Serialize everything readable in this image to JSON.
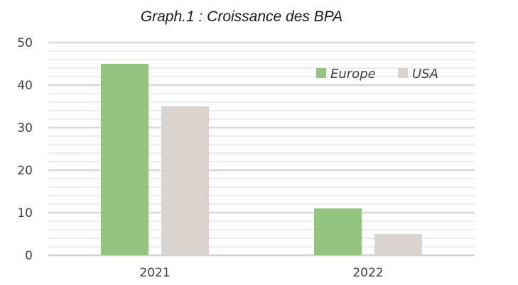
{
  "chart_data": {
    "type": "bar",
    "title": "Graph.1 : Croissance des BPA",
    "categories": [
      "2021",
      "2022"
    ],
    "series": [
      {
        "name": "Europe",
        "values": [
          45,
          11
        ],
        "color": "#93c47d"
      },
      {
        "name": "USA",
        "values": [
          35,
          5
        ],
        "color": "#d9d4d0"
      }
    ],
    "xlabel": "",
    "ylabel": "",
    "ylim": [
      0,
      50
    ],
    "yticks": [
      0,
      10,
      20,
      30,
      40,
      50
    ],
    "grid": true,
    "legend_position": "top-right"
  }
}
